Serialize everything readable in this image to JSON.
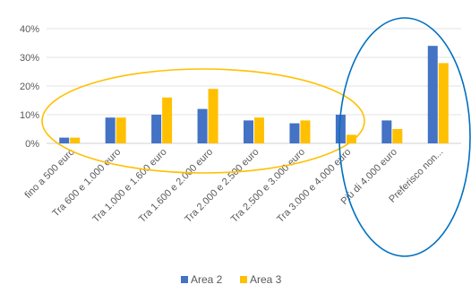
{
  "chart_data": {
    "type": "bar",
    "title": "",
    "xlabel": "",
    "ylabel": "",
    "ylim": [
      0,
      40
    ],
    "yticks": [
      "0%",
      "10%",
      "20%",
      "30%",
      "40%"
    ],
    "grid": true,
    "legend_position": "bottom",
    "categories": [
      "fino a 500 euro",
      "Tra 600 e 1.000 euro",
      "Tra 1.000 e 1.600 euro",
      "Tra 1.600 e 2.000 euro",
      "Tra 2.000 e 2.500 euro",
      "Tra 2.500 e 3.000 euro",
      "Tra 3.000 e 4.000 euro",
      "Più di 4.000 euro",
      "Preferisco non..."
    ],
    "series": [
      {
        "name": "Area 2",
        "color": "#4472C4",
        "values": [
          2,
          9,
          10,
          12,
          8,
          7,
          10,
          8,
          34
        ]
      },
      {
        "name": "Area 3",
        "color": "#FFC000",
        "values": [
          2,
          9,
          16,
          19,
          9,
          8,
          3,
          5,
          28
        ]
      }
    ],
    "annotations": [
      {
        "shape": "ellipse",
        "color": "#FFC000",
        "encloses": [
          "Tra 600 e 1.000 euro",
          "Tra 1.000 e 1.600 euro",
          "Tra 1.600 e 2.000 euro",
          "Tra 2.000 e 2.500 euro",
          "Tra 2.500 e 3.000 euro"
        ]
      },
      {
        "shape": "ellipse",
        "color": "#0070C0",
        "encloses": [
          "Tra 3.000 e 4.000 euro",
          "Più di 4.000 euro",
          "Preferisco non..."
        ]
      }
    ]
  }
}
